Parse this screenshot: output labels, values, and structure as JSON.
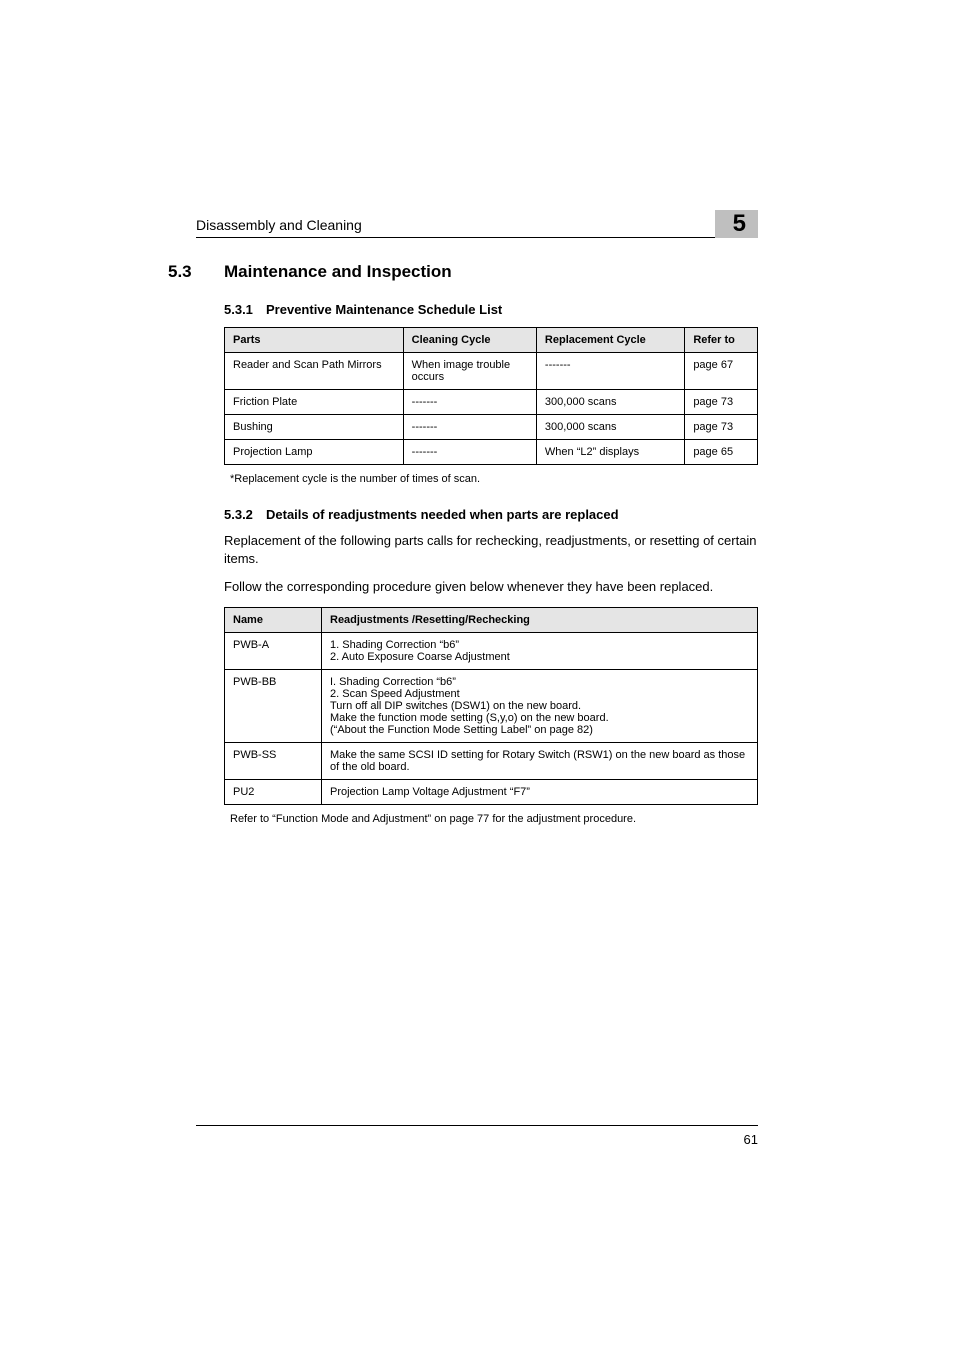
{
  "header": {
    "title": "Disassembly and Cleaning",
    "chapter_number": "5"
  },
  "section": {
    "number": "5.3",
    "title": "Maintenance and Inspection"
  },
  "subsection1": {
    "number": "5.3.1",
    "title": "Preventive Maintenance Schedule List"
  },
  "table1": {
    "headers": {
      "parts": "Parts",
      "cleaning": "Cleaning Cycle",
      "replacement": "Replacement Cycle",
      "refer": "Refer to"
    },
    "rows": [
      {
        "parts": "Reader and Scan Path Mirrors",
        "cleaning": "When image trouble occurs",
        "replacement": "-------",
        "refer": "page 67"
      },
      {
        "parts": "Friction Plate",
        "cleaning": "-------",
        "replacement": "300,000 scans",
        "refer": "page 73"
      },
      {
        "parts": "Bushing",
        "cleaning": "-------",
        "replacement": "300,000 scans",
        "refer": "page 73"
      },
      {
        "parts": "Projection Lamp",
        "cleaning": "-------",
        "replacement": "When “L2” displays",
        "refer": "page 65"
      }
    ],
    "footnote": "*Replacement cycle is the number of times of scan."
  },
  "subsection2": {
    "number": "5.3.2",
    "title": "Details of readjustments needed when parts are replaced",
    "para1": "Replacement of the following parts calls for rechecking, readjustments, or resetting of certain items.",
    "para2": "Follow the corresponding procedure given below whenever they have been replaced."
  },
  "table2": {
    "headers": {
      "name": "Name",
      "readjust": "Readjustments /Resetting/Rechecking"
    },
    "rows": [
      {
        "name": "PWB-A",
        "readjust": "1. Shading Correction “b6”\n2. Auto Exposure Coarse Adjustment"
      },
      {
        "name": "PWB-BB",
        "readjust": "I. Shading Correction “b6”\n2. Scan Speed Adjustment\nTurn off all DIP switches (DSW1) on the new board.\nMake the function mode setting (S,y,o) on the new board.\n(“About the Function Mode Setting Label” on page 82)"
      },
      {
        "name": "PWB-SS",
        "readjust": "Make the same SCSI ID setting for Rotary Switch (RSW1) on the new board as those of the old board."
      },
      {
        "name": "PU2",
        "readjust": "Projection Lamp Voltage Adjustment “F7”"
      }
    ],
    "footnote": "Refer to “Function Mode and Adjustment” on page 77 for the adjustment procedure."
  },
  "page_number": "61"
}
